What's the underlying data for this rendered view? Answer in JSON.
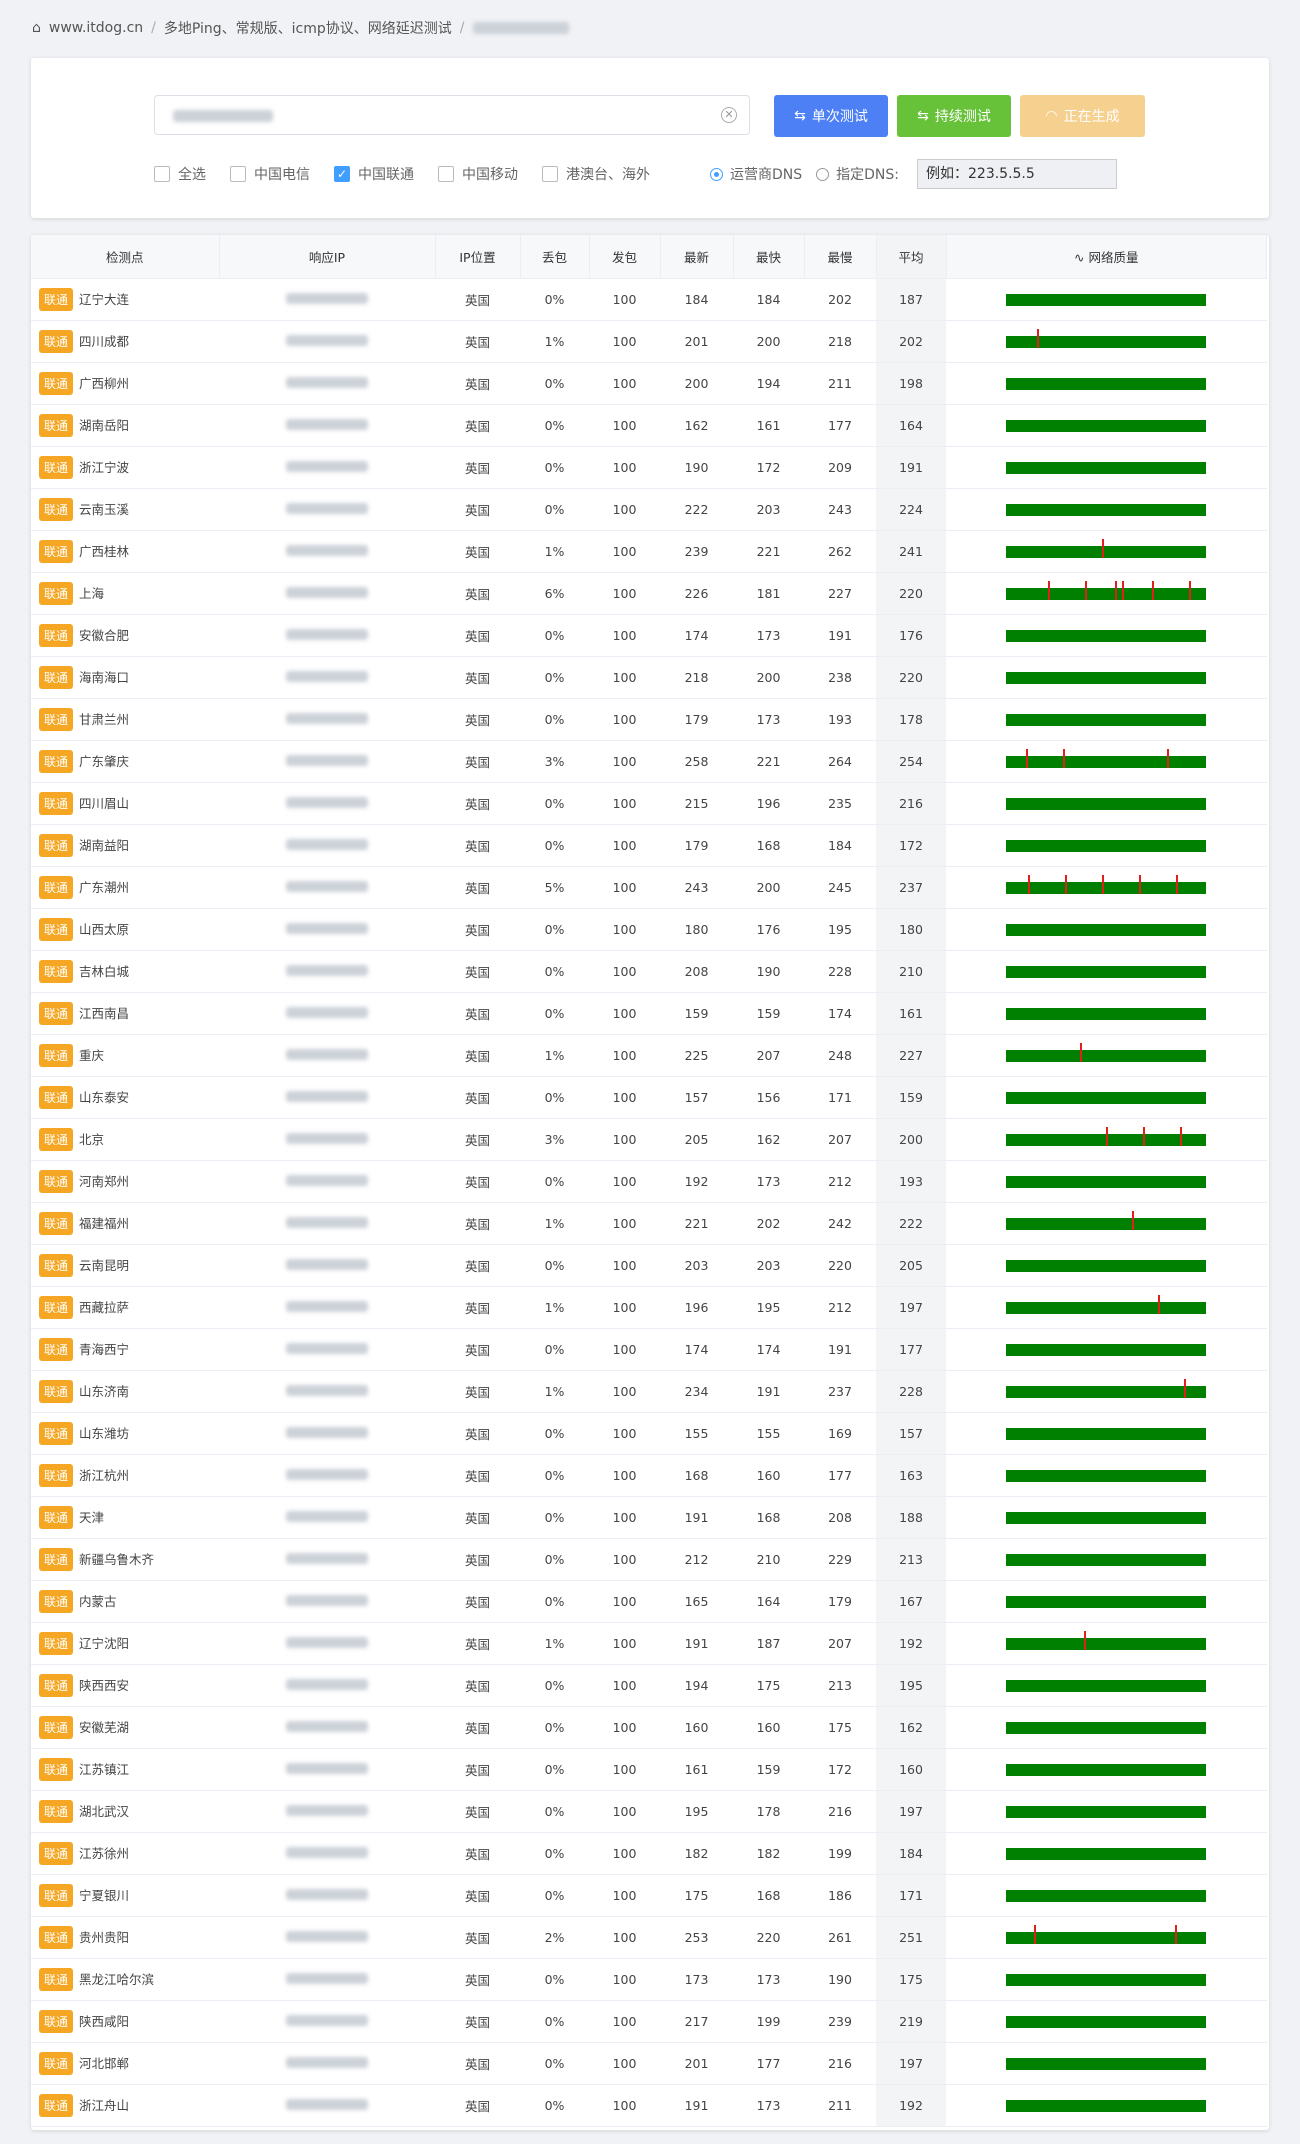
{
  "breadcrumb": [
    "www.itdog.cn",
    "多地Ping、常规版、icmp协议、网络延迟测试"
  ],
  "buttons": [
    "单次测试",
    "持续测试",
    "正在生成"
  ],
  "filters": [
    "全选",
    "中国电信",
    "中国联通",
    "中国移动",
    "港澳台、海外"
  ],
  "dns": {
    "options": [
      "运营商DNS",
      "指定DNS:"
    ],
    "placeholder": "例如：223.5.5.5"
  },
  "table": {
    "headers": [
      "检测点",
      "响应IP",
      "IP位置",
      "丢包",
      "发包",
      "最新",
      "最快",
      "最慢",
      "平均",
      "网络质量"
    ],
    "rows": [
      [
        "联通",
        "辽宁大连",
        "英国",
        "0%",
        100,
        184,
        184,
        202,
        187
      ],
      [
        "联通",
        "四川成都",
        "英国",
        "1%",
        100,
        201,
        200,
        218,
        202
      ],
      [
        "联通",
        "广西柳州",
        "英国",
        "0%",
        100,
        200,
        194,
        211,
        198
      ],
      [
        "联通",
        "湖南岳阳",
        "英国",
        "0%",
        100,
        162,
        161,
        177,
        164
      ],
      [
        "联通",
        "浙江宁波",
        "英国",
        "0%",
        100,
        190,
        172,
        209,
        191
      ],
      [
        "联通",
        "云南玉溪",
        "英国",
        "0%",
        100,
        222,
        203,
        243,
        224
      ],
      [
        "联通",
        "广西桂林",
        "英国",
        "1%",
        100,
        239,
        221,
        262,
        241
      ],
      [
        "联通",
        "上海",
        "英国",
        "6%",
        100,
        226,
        181,
        227,
        220
      ],
      [
        "联通",
        "安徽合肥",
        "英国",
        "0%",
        100,
        174,
        173,
        191,
        176
      ],
      [
        "联通",
        "海南海口",
        "英国",
        "0%",
        100,
        218,
        200,
        238,
        220
      ],
      [
        "联通",
        "甘肃兰州",
        "英国",
        "0%",
        100,
        179,
        173,
        193,
        178
      ],
      [
        "联通",
        "广东肇庆",
        "英国",
        "3%",
        100,
        258,
        221,
        264,
        254
      ],
      [
        "联通",
        "四川眉山",
        "英国",
        "0%",
        100,
        215,
        196,
        235,
        216
      ],
      [
        "联通",
        "湖南益阳",
        "英国",
        "0%",
        100,
        179,
        168,
        184,
        172
      ],
      [
        "联通",
        "广东潮州",
        "英国",
        "5%",
        100,
        243,
        200,
        245,
        237
      ],
      [
        "联通",
        "山西太原",
        "英国",
        "0%",
        100,
        180,
        176,
        195,
        180
      ],
      [
        "联通",
        "吉林白城",
        "英国",
        "0%",
        100,
        208,
        190,
        228,
        210
      ],
      [
        "联通",
        "江西南昌",
        "英国",
        "0%",
        100,
        159,
        159,
        174,
        161
      ],
      [
        "联通",
        "重庆",
        "英国",
        "1%",
        100,
        225,
        207,
        248,
        227
      ],
      [
        "联通",
        "山东泰安",
        "英国",
        "0%",
        100,
        157,
        156,
        171,
        159
      ],
      [
        "联通",
        "北京",
        "英国",
        "3%",
        100,
        205,
        162,
        207,
        200
      ],
      [
        "联通",
        "河南郑州",
        "英国",
        "0%",
        100,
        192,
        173,
        212,
        193
      ],
      [
        "联通",
        "福建福州",
        "英国",
        "1%",
        100,
        221,
        202,
        242,
        222
      ],
      [
        "联通",
        "云南昆明",
        "英国",
        "0%",
        100,
        203,
        203,
        220,
        205
      ],
      [
        "联通",
        "西藏拉萨",
        "英国",
        "1%",
        100,
        196,
        195,
        212,
        197
      ],
      [
        "联通",
        "青海西宁",
        "英国",
        "0%",
        100,
        174,
        174,
        191,
        177
      ],
      [
        "联通",
        "山东济南",
        "英国",
        "1%",
        100,
        234,
        191,
        237,
        228
      ],
      [
        "联通",
        "山东潍坊",
        "英国",
        "0%",
        100,
        155,
        155,
        169,
        157
      ],
      [
        "联通",
        "浙江杭州",
        "英国",
        "0%",
        100,
        168,
        160,
        177,
        163
      ],
      [
        "联通",
        "天津",
        "英国",
        "0%",
        100,
        191,
        168,
        208,
        188
      ],
      [
        "联通",
        "新疆乌鲁木齐",
        "英国",
        "0%",
        100,
        212,
        210,
        229,
        213
      ],
      [
        "联通",
        "内蒙古",
        "英国",
        "0%",
        100,
        165,
        164,
        179,
        167
      ],
      [
        "联通",
        "辽宁沈阳",
        "英国",
        "1%",
        100,
        191,
        187,
        207,
        192
      ],
      [
        "联通",
        "陕西西安",
        "英国",
        "0%",
        100,
        194,
        175,
        213,
        195
      ],
      [
        "联通",
        "安徽芜湖",
        "英国",
        "0%",
        100,
        160,
        160,
        175,
        162
      ],
      [
        "联通",
        "江苏镇江",
        "英国",
        "0%",
        100,
        161,
        159,
        172,
        160
      ],
      [
        "联通",
        "湖北武汉",
        "英国",
        "0%",
        100,
        195,
        178,
        216,
        197
      ],
      [
        "联通",
        "江苏徐州",
        "英国",
        "0%",
        100,
        182,
        182,
        199,
        184
      ],
      [
        "联通",
        "宁夏银川",
        "英国",
        "0%",
        100,
        175,
        168,
        186,
        171
      ],
      [
        "联通",
        "贵州贵阳",
        "英国",
        "2%",
        100,
        253,
        220,
        261,
        251
      ],
      [
        "联通",
        "黑龙江哈尔滨",
        "英国",
        "0%",
        100,
        173,
        173,
        190,
        175
      ],
      [
        "联通",
        "陕西咸阳",
        "英国",
        "0%",
        100,
        217,
        199,
        239,
        219
      ],
      [
        "联通",
        "河北邯郸",
        "英国",
        "0%",
        100,
        201,
        177,
        216,
        197
      ],
      [
        "联通",
        "浙江舟山",
        "英国",
        "0%",
        100,
        191,
        173,
        211,
        192
      ]
    ]
  }
}
